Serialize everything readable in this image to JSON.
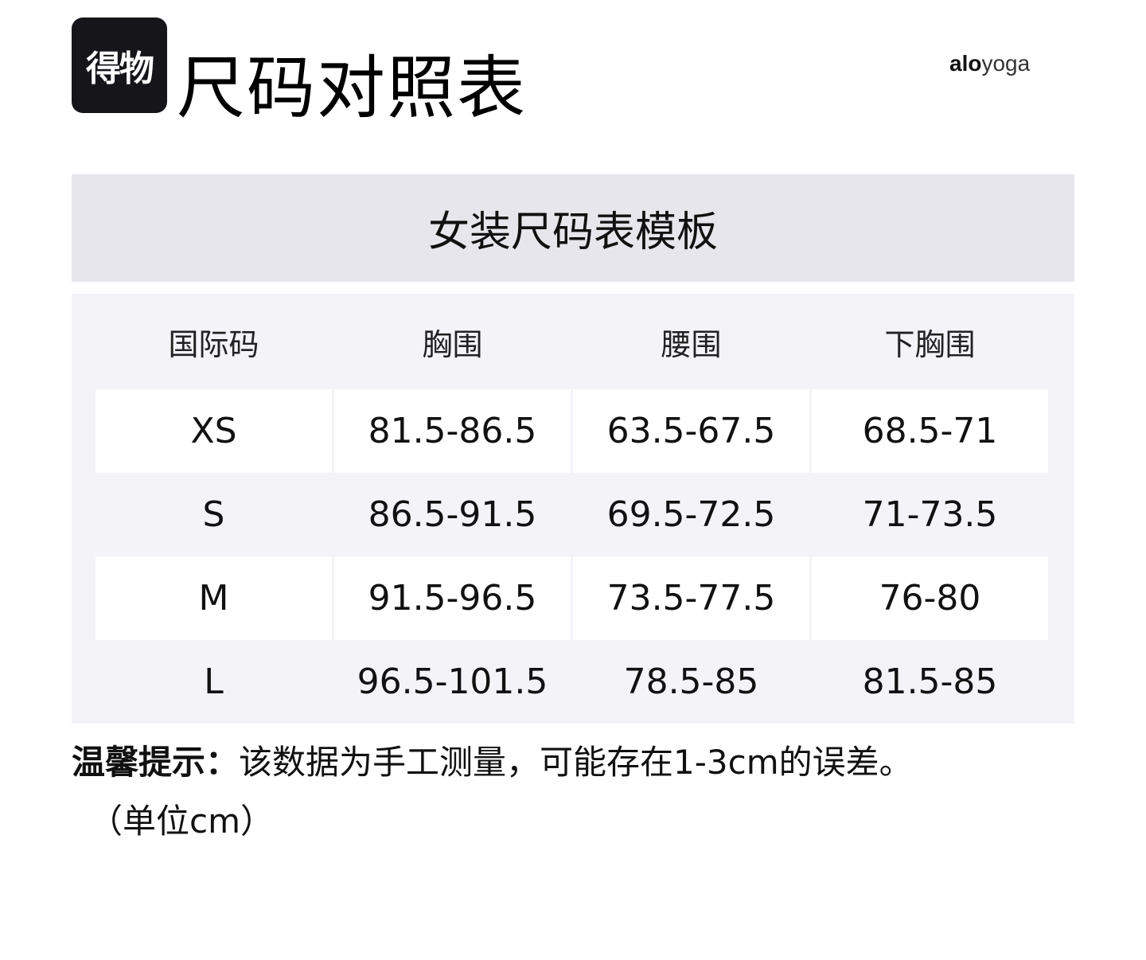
{
  "header": {
    "logo_text": "得物",
    "title": "尺码对照表",
    "brand_bold": "alo",
    "brand_light": "yoga"
  },
  "chart_title": "女装尺码表模板",
  "table": {
    "columns": [
      "国际码",
      "胸围",
      "腰围",
      "下胸围"
    ],
    "rows": [
      [
        "XS",
        "81.5-86.5",
        "63.5-67.5",
        "68.5-71"
      ],
      [
        "S",
        "86.5-91.5",
        "69.5-72.5",
        "71-73.5"
      ],
      [
        "M",
        "91.5-96.5",
        "73.5-77.5",
        "76-80"
      ],
      [
        "L",
        "96.5-101.5",
        "78.5-85",
        "81.5-85"
      ]
    ]
  },
  "note": {
    "label": "温馨提示：",
    "text": "该数据为手工测量，可能存在1-3cm的误差。",
    "unit": "（单位cm）"
  },
  "colors": {
    "band": "#e6e6ec",
    "table_bg": "#f3f3f8",
    "logo_bg": "#16161a"
  }
}
